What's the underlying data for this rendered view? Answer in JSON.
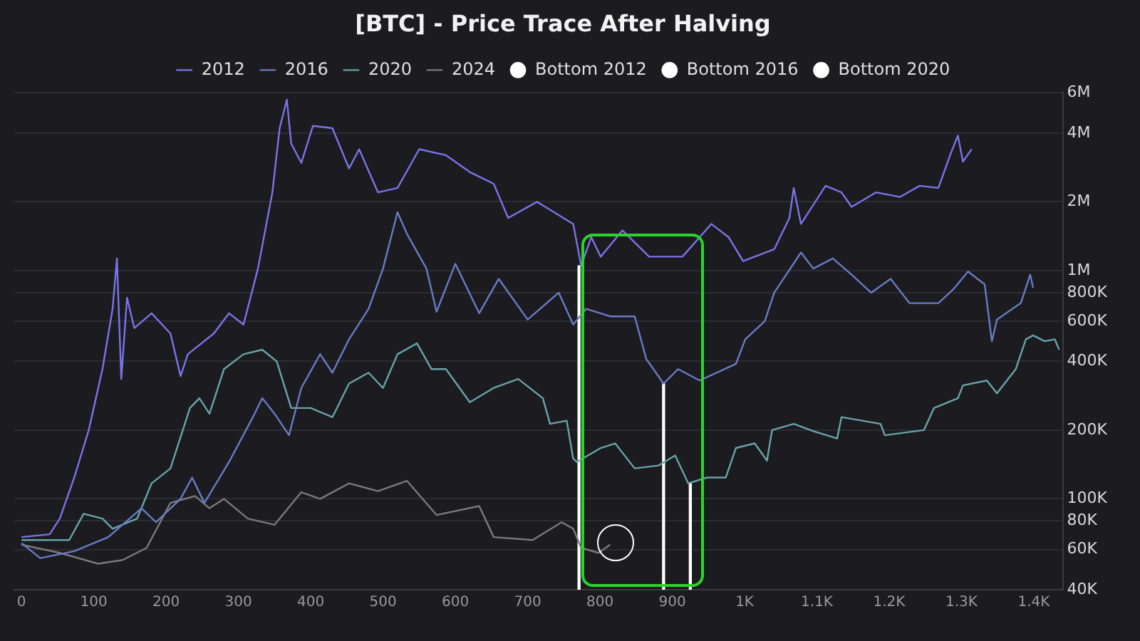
{
  "chart_data": {
    "type": "line",
    "title": "[BTC] - Price Trace After Halving",
    "log": "y",
    "grid": "y",
    "legend": "top",
    "marker": "none",
    "line_style": "solid",
    "xlim": [
      -10,
      1440
    ],
    "xticks": [
      0,
      100,
      200,
      300,
      400,
      500,
      600,
      700,
      800,
      900,
      {
        "value": 1000,
        "label": "1K"
      },
      {
        "value": 1100,
        "label": "1.1K"
      },
      {
        "value": 1200,
        "label": "1.2K"
      },
      {
        "value": 1300,
        "label": "1.3K"
      },
      {
        "value": 1400,
        "label": "1.4K"
      }
    ],
    "ylim": [
      40000,
      6000000
    ],
    "yticks": [
      {
        "value": 40000,
        "label": "40K"
      },
      {
        "value": 60000,
        "label": "60K"
      },
      {
        "value": 80000,
        "label": "80K"
      },
      {
        "value": 100000,
        "label": "100K"
      },
      {
        "value": 200000,
        "label": "200K"
      },
      {
        "value": 400000,
        "label": "400K"
      },
      {
        "value": 600000,
        "label": "600K"
      },
      {
        "value": 800000,
        "label": "800K"
      },
      {
        "value": 1000000,
        "label": "1M"
      },
      {
        "value": 2000000,
        "label": "2M"
      },
      {
        "value": 4000000,
        "label": "4M"
      },
      {
        "value": 6000000,
        "label": "6M"
      }
    ],
    "series": [
      {
        "name": "2012",
        "color": "#7b74e8",
        "x": [
          0,
          39,
          53,
          73,
          93,
          112,
          126,
          132,
          138,
          146,
          156,
          180,
          206,
          220,
          230,
          266,
          287,
          307,
          327,
          347,
          357,
          367,
          373,
          387,
          403,
          430,
          453,
          467,
          493,
          520,
          550,
          587,
          620,
          653,
          673,
          713,
          763,
          774,
          788,
          801,
          831,
          868,
          914,
          954,
          978,
          998,
          1041,
          1062,
          1068,
          1078,
          1112,
          1134,
          1148,
          1182,
          1215,
          1242,
          1268,
          1285,
          1295,
          1302,
          1314
        ],
        "values": [
          68000,
          70000,
          82000,
          124000,
          200000,
          370000,
          680000,
          1130000,
          335000,
          760000,
          560000,
          650000,
          530000,
          345000,
          430000,
          530000,
          650000,
          580000,
          1020000,
          2200000,
          4200000,
          5600000,
          3600000,
          2960000,
          4300000,
          4200000,
          2800000,
          3400000,
          2200000,
          2300000,
          3400000,
          3200000,
          2700000,
          2400000,
          1700000,
          2000000,
          1600000,
          1050000,
          1400000,
          1150000,
          1500000,
          1150000,
          1150000,
          1600000,
          1400000,
          1100000,
          1240000,
          1700000,
          2300000,
          1600000,
          2350000,
          2200000,
          1900000,
          2200000,
          2100000,
          2350000,
          2300000,
          3250000,
          3900000,
          3000000,
          3400000
        ]
      },
      {
        "name": "2016",
        "color": "#6a7bc4",
        "x": [
          0,
          26,
          73,
          120,
          166,
          186,
          220,
          236,
          253,
          287,
          320,
          333,
          350,
          370,
          387,
          413,
          430,
          453,
          480,
          500,
          520,
          533,
          560,
          574,
          600,
          633,
          660,
          700,
          743,
          763,
          781,
          814,
          848,
          864,
          888,
          908,
          938,
          988,
          1001,
          1028,
          1041,
          1078,
          1095,
          1122,
          1148,
          1175,
          1202,
          1228,
          1268,
          1289,
          1309,
          1332,
          1342,
          1349,
          1382,
          1395,
          1399
        ],
        "values": [
          64000,
          55000,
          59000,
          68000,
          91000,
          79000,
          100000,
          124000,
          96000,
          145000,
          228000,
          276000,
          236000,
          190000,
          306000,
          430000,
          357000,
          500000,
          680000,
          1020000,
          1800000,
          1450000,
          1020000,
          660000,
          1070000,
          650000,
          920000,
          610000,
          800000,
          580000,
          680000,
          630000,
          630000,
          410000,
          320000,
          370000,
          330000,
          390000,
          500000,
          600000,
          800000,
          1200000,
          1020000,
          1130000,
          960000,
          800000,
          920000,
          720000,
          720000,
          830000,
          990000,
          870000,
          490000,
          610000,
          720000,
          960000,
          840000
        ]
      },
      {
        "name": "2020",
        "color": "#68a4a8",
        "x": [
          0,
          66,
          86,
          112,
          126,
          160,
          180,
          206,
          233,
          246,
          260,
          280,
          307,
          333,
          353,
          373,
          400,
          430,
          453,
          480,
          500,
          520,
          547,
          567,
          587,
          620,
          653,
          687,
          721,
          731,
          754,
          763,
          768,
          801,
          821,
          848,
          881,
          904,
          922,
          948,
          974,
          988,
          1014,
          1031,
          1038,
          1068,
          1095,
          1128,
          1134,
          1188,
          1194,
          1248,
          1262,
          1295,
          1302,
          1335,
          1349,
          1375,
          1389,
          1399,
          1415,
          1429,
          1435
        ],
        "values": [
          66000,
          66000,
          86000,
          82000,
          74000,
          82000,
          117000,
          136000,
          250000,
          276000,
          236000,
          370000,
          430000,
          450000,
          400000,
          250000,
          250000,
          228000,
          320000,
          357000,
          306000,
          430000,
          480000,
          370000,
          370000,
          265000,
          306000,
          335000,
          276000,
          213000,
          220000,
          150000,
          145000,
          167000,
          175000,
          136000,
          140000,
          155000,
          117000,
          124000,
          124000,
          167000,
          175000,
          147000,
          200000,
          213000,
          198000,
          184000,
          228000,
          213000,
          190000,
          200000,
          250000,
          276000,
          314000,
          330000,
          290000,
          370000,
          500000,
          520000,
          490000,
          500000,
          450000
        ]
      },
      {
        "name": "2024",
        "color": "#7a7a7a",
        "x": [
          0,
          53,
          106,
          140,
          173,
          206,
          240,
          260,
          280,
          313,
          350,
          387,
          413,
          453,
          493,
          533,
          574,
          633,
          653,
          707,
          747,
          763,
          774,
          798,
          814
        ],
        "values": [
          63000,
          58000,
          52000,
          54000,
          61000,
          96000,
          103000,
          91000,
          100000,
          82000,
          77000,
          107000,
          100000,
          117000,
          108000,
          120000,
          85000,
          93000,
          68000,
          66000,
          79000,
          74000,
          61000,
          58000,
          63000
        ]
      },
      {
        "name": "Bottom 2012",
        "type": "bar",
        "color": "#ffffff",
        "x": [
          774
        ],
        "values": [
          1050000
        ]
      },
      {
        "name": "Bottom 2016",
        "type": "bar",
        "color": "#ffffff",
        "x": [
          888
        ],
        "values": [
          320000
        ]
      },
      {
        "name": "Bottom 2020",
        "type": "bar",
        "color": "#ffffff",
        "x": [
          922
        ],
        "values": [
          117000
        ]
      }
    ]
  }
}
